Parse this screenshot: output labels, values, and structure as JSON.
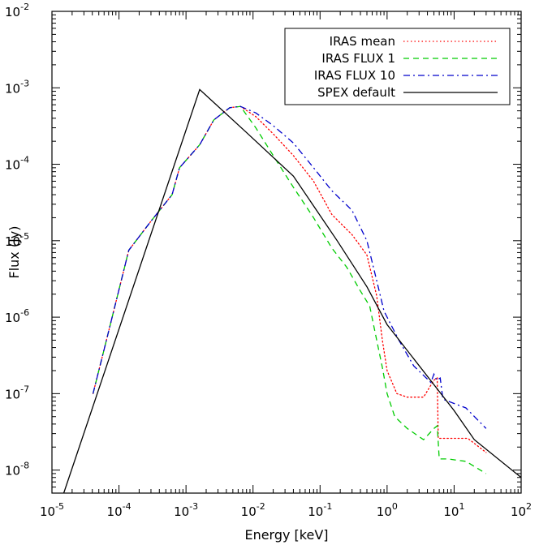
{
  "chart_data": {
    "type": "line",
    "title": "",
    "xlabel": "Energy [keV]",
    "ylabel": "Flux (Jy)",
    "x_scale": "log",
    "y_scale": "log",
    "xlim": [
      1e-05,
      100
    ],
    "ylim": [
      5e-09,
      0.01
    ],
    "x_ticks": [
      {
        "value": 1e-05,
        "base": "10",
        "exp": "-5"
      },
      {
        "value": 0.0001,
        "base": "10",
        "exp": "-4"
      },
      {
        "value": 0.001,
        "base": "10",
        "exp": "-3"
      },
      {
        "value": 0.01,
        "base": "10",
        "exp": "-2"
      },
      {
        "value": 0.1,
        "base": "10",
        "exp": "-1"
      },
      {
        "value": 1,
        "base": "10",
        "exp": "0"
      },
      {
        "value": 10,
        "base": "10",
        "exp": "1"
      },
      {
        "value": 100,
        "base": "10",
        "exp": "2"
      }
    ],
    "y_ticks": [
      {
        "value": 1e-08,
        "base": "10",
        "exp": "-8"
      },
      {
        "value": 1e-07,
        "base": "10",
        "exp": "-7"
      },
      {
        "value": 1e-06,
        "base": "10",
        "exp": "-6"
      },
      {
        "value": 1e-05,
        "base": "10",
        "exp": "-5"
      },
      {
        "value": 0.0001,
        "base": "10",
        "exp": "-4"
      },
      {
        "value": 0.001,
        "base": "10",
        "exp": "-3"
      },
      {
        "value": 0.01,
        "base": "10",
        "exp": "-2"
      }
    ],
    "grid": false,
    "legend_position": "top-right",
    "series": [
      {
        "name": "IRAS mean",
        "color": "#ff0000",
        "dash": "dotted",
        "points": [
          [
            4.1e-05,
            1e-07
          ],
          [
            6.5e-05,
            5e-07
          ],
          [
            0.00014,
            7.5e-06
          ],
          [
            0.0003,
            1.8e-05
          ],
          [
            0.00062,
            4e-05
          ],
          [
            0.0008,
            9e-05
          ],
          [
            0.0016,
            0.00018
          ],
          [
            0.0026,
            0.00038
          ],
          [
            0.0045,
            0.00055
          ],
          [
            0.0065,
            0.00057
          ],
          [
            0.011,
            0.00042
          ],
          [
            0.02,
            0.00025
          ],
          [
            0.04,
            0.00013
          ],
          [
            0.08,
            6e-05
          ],
          [
            0.15,
            2.2e-05
          ],
          [
            0.3,
            1.2e-05
          ],
          [
            0.5,
            6.5e-06
          ],
          [
            0.7,
            1.9e-06
          ],
          [
            0.85,
            5e-07
          ],
          [
            1.0,
            2e-07
          ],
          [
            1.4,
            1e-07
          ],
          [
            2.0,
            9e-08
          ],
          [
            3.5,
            9e-08
          ],
          [
            5.0,
            1.5e-07
          ],
          [
            5.6,
            1.6e-07
          ],
          [
            5.8,
            2.6e-08
          ],
          [
            8.0,
            2.6e-08
          ],
          [
            16,
            2.6e-08
          ],
          [
            30,
            1.7e-08
          ]
        ]
      },
      {
        "name": "IRAS FLUX 1",
        "color": "#00cc00",
        "dash": "dashed",
        "points": [
          [
            4.1e-05,
            1e-07
          ],
          [
            6.5e-05,
            5e-07
          ],
          [
            0.00014,
            7.5e-06
          ],
          [
            0.0003,
            1.8e-05
          ],
          [
            0.00062,
            4e-05
          ],
          [
            0.0008,
            9e-05
          ],
          [
            0.0016,
            0.00018
          ],
          [
            0.0026,
            0.00038
          ],
          [
            0.0045,
            0.00055
          ],
          [
            0.0065,
            0.00057
          ],
          [
            0.011,
            0.0003
          ],
          [
            0.02,
            0.00013
          ],
          [
            0.04,
            5e-05
          ],
          [
            0.08,
            2e-05
          ],
          [
            0.15,
            8e-06
          ],
          [
            0.25,
            4.5e-06
          ],
          [
            0.4,
            2.2e-06
          ],
          [
            0.55,
            1.4e-06
          ],
          [
            0.7,
            5e-07
          ],
          [
            0.85,
            2.2e-07
          ],
          [
            1.0,
            1e-07
          ],
          [
            1.3,
            5e-08
          ],
          [
            2.0,
            3.5e-08
          ],
          [
            3.5,
            2.5e-08
          ],
          [
            5.0,
            3.5e-08
          ],
          [
            5.6,
            3.8e-08
          ],
          [
            6.0,
            1.4e-08
          ],
          [
            8.0,
            1.4e-08
          ],
          [
            15,
            1.3e-08
          ],
          [
            30,
            9e-09
          ]
        ]
      },
      {
        "name": "IRAS FLUX 10",
        "color": "#0000cc",
        "dash": "dashdot",
        "points": [
          [
            4.1e-05,
            1e-07
          ],
          [
            6.5e-05,
            5e-07
          ],
          [
            0.00014,
            7.5e-06
          ],
          [
            0.0003,
            1.8e-05
          ],
          [
            0.00062,
            4e-05
          ],
          [
            0.0008,
            9e-05
          ],
          [
            0.0016,
            0.00018
          ],
          [
            0.0026,
            0.00038
          ],
          [
            0.0045,
            0.00055
          ],
          [
            0.0065,
            0.00057
          ],
          [
            0.011,
            0.00047
          ],
          [
            0.02,
            0.00032
          ],
          [
            0.04,
            0.00019
          ],
          [
            0.08,
            9e-05
          ],
          [
            0.15,
            4.5e-05
          ],
          [
            0.3,
            2.5e-05
          ],
          [
            0.5,
            1e-05
          ],
          [
            0.7,
            3e-06
          ],
          [
            0.9,
            1.2e-06
          ],
          [
            1.5,
            5e-07
          ],
          [
            2.5,
            2.3e-07
          ],
          [
            4.5,
            1.4e-07
          ],
          [
            5.0,
            1.8e-07
          ],
          [
            5.5,
            1.5e-07
          ],
          [
            6.2,
            1.6e-07
          ],
          [
            6.8,
            8.5e-08
          ],
          [
            8.0,
            8e-08
          ],
          [
            15,
            6.5e-08
          ],
          [
            30,
            3.5e-08
          ]
        ]
      },
      {
        "name": "SPEX default",
        "color": "#000000",
        "dash": "solid",
        "points": [
          [
            1.5e-05,
            5e-09
          ],
          [
            0.0016,
            0.00095
          ],
          [
            0.008,
            0.00026
          ],
          [
            0.04,
            7e-05
          ],
          [
            0.18,
            1e-05
          ],
          [
            0.5,
            2.5e-06
          ],
          [
            1.0,
            8e-07
          ],
          [
            10,
            6e-08
          ],
          [
            20,
            2.5e-08
          ],
          [
            100,
            8e-09
          ]
        ]
      }
    ]
  }
}
